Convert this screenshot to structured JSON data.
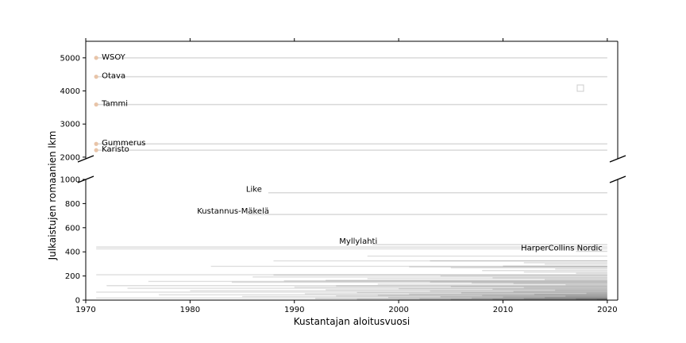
{
  "chart_data": {
    "type": "broken-axis-horizontal-line",
    "xlabel": "Kustantajan aloitusvuosi",
    "ylabel": "Julkaistujen romaanien lkm",
    "xlim": [
      1970,
      2021
    ],
    "x_ticks": [
      1970,
      1980,
      1990,
      2000,
      2010,
      2020
    ],
    "upper_panel": {
      "ylim": [
        1950,
        5500
      ],
      "y_ticks": [
        2000,
        3000,
        4000,
        5000
      ]
    },
    "lower_panel": {
      "ylim": [
        0,
        1000
      ],
      "y_ticks": [
        0,
        200,
        400,
        600,
        800,
        1000
      ]
    },
    "legend": {
      "placement": "upper-right",
      "entries": []
    },
    "start_marker_color": "#e8c4a8",
    "line_color": "#d9d9d9",
    "annotated_publishers": [
      {
        "name": "WSOY",
        "start": 1971,
        "value": 5000,
        "panel": "upper"
      },
      {
        "name": "Otava",
        "start": 1971,
        "value": 4430,
        "panel": "upper"
      },
      {
        "name": "Tammi",
        "start": 1971,
        "value": 3590,
        "panel": "upper"
      },
      {
        "name": "Gummerus",
        "start": 1971,
        "value": 2400,
        "panel": "upper"
      },
      {
        "name": "Karisto",
        "start": 1971,
        "value": 2210,
        "panel": "upper"
      },
      {
        "name": "Like",
        "start": 1987.5,
        "value": 890,
        "panel": "lower"
      },
      {
        "name": "Kustannus-Mäkelä",
        "start": 1985.5,
        "value": 710,
        "panel": "lower"
      },
      {
        "name": "Myllylahti",
        "start": 1997.5,
        "value": 460,
        "panel": "lower"
      },
      {
        "name": "HarperCollins Nordic",
        "start": 2017,
        "value": 405,
        "panel": "lower"
      }
    ],
    "other_publishers": [
      {
        "start": 1971,
        "value": 440
      },
      {
        "start": 1971,
        "value": 425
      },
      {
        "start": 1997,
        "value": 365
      },
      {
        "start": 2003,
        "value": 325
      },
      {
        "start": 1988,
        "value": 325
      },
      {
        "start": 2012,
        "value": 310
      },
      {
        "start": 2014,
        "value": 298
      },
      {
        "start": 2010,
        "value": 282
      },
      {
        "start": 1982,
        "value": 280
      },
      {
        "start": 2001,
        "value": 275
      },
      {
        "start": 2005,
        "value": 268
      },
      {
        "start": 2015,
        "value": 258
      },
      {
        "start": 2008,
        "value": 245
      },
      {
        "start": 2012,
        "value": 232
      },
      {
        "start": 2017,
        "value": 222
      },
      {
        "start": 1971,
        "value": 210
      },
      {
        "start": 1988,
        "value": 208
      },
      {
        "start": 2004,
        "value": 200
      },
      {
        "start": 1986,
        "value": 192
      },
      {
        "start": 2009,
        "value": 185
      },
      {
        "start": 1997,
        "value": 178
      },
      {
        "start": 2014,
        "value": 170
      },
      {
        "start": 1993,
        "value": 164
      },
      {
        "start": 1976,
        "value": 155
      },
      {
        "start": 1989,
        "value": 160
      },
      {
        "start": 2003,
        "value": 150
      },
      {
        "start": 1984,
        "value": 148
      },
      {
        "start": 2007,
        "value": 142
      },
      {
        "start": 2011,
        "value": 138
      },
      {
        "start": 1998,
        "value": 132
      },
      {
        "start": 2016,
        "value": 128
      },
      {
        "start": 1972,
        "value": 120
      },
      {
        "start": 1994,
        "value": 118
      },
      {
        "start": 2005,
        "value": 112
      },
      {
        "start": 1990,
        "value": 108
      },
      {
        "start": 2012,
        "value": 104
      },
      {
        "start": 1974,
        "value": 98
      },
      {
        "start": 2000,
        "value": 95
      },
      {
        "start": 2009,
        "value": 90
      },
      {
        "start": 1993,
        "value": 86
      },
      {
        "start": 2015,
        "value": 82
      },
      {
        "start": 1980,
        "value": 78
      },
      {
        "start": 2003,
        "value": 75
      },
      {
        "start": 2011,
        "value": 70
      },
      {
        "start": 1971,
        "value": 66
      },
      {
        "start": 1996,
        "value": 63
      },
      {
        "start": 2006,
        "value": 60
      },
      {
        "start": 2018,
        "value": 56
      },
      {
        "start": 1991,
        "value": 53
      },
      {
        "start": 2001,
        "value": 50
      },
      {
        "start": 2013,
        "value": 47
      },
      {
        "start": 1977,
        "value": 44
      },
      {
        "start": 1998,
        "value": 41
      },
      {
        "start": 2008,
        "value": 38
      },
      {
        "start": 1994,
        "value": 35
      },
      {
        "start": 2016,
        "value": 33
      },
      {
        "start": 1985,
        "value": 30
      },
      {
        "start": 2004,
        "value": 28
      },
      {
        "start": 2010,
        "value": 25
      },
      {
        "start": 1999,
        "value": 22
      },
      {
        "start": 2014,
        "value": 20
      },
      {
        "start": 1971,
        "value": 18
      },
      {
        "start": 2007,
        "value": 16
      },
      {
        "start": 1992,
        "value": 14
      },
      {
        "start": 2012,
        "value": 12
      },
      {
        "start": 2002,
        "value": 10
      },
      {
        "start": 2017,
        "value": 9
      },
      {
        "start": 1996,
        "value": 8
      },
      {
        "start": 2009,
        "value": 6
      },
      {
        "start": 2005,
        "value": 5
      },
      {
        "start": 2019,
        "value": 4
      },
      {
        "start": 2000,
        "value": 3
      }
    ]
  }
}
